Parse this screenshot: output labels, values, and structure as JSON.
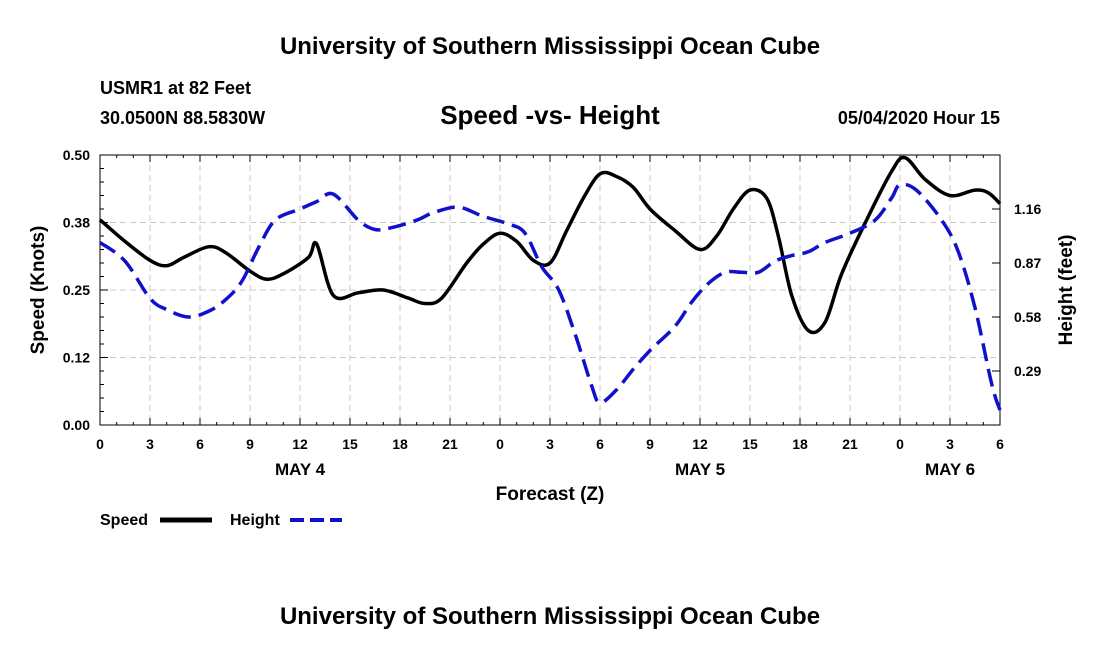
{
  "header": {
    "title_top": "University of Southern Mississippi Ocean Cube",
    "title_bottom": "University of Southern Mississippi Ocean Cube",
    "station": "USMR1 at 82 Feet",
    "coords": "30.0500N 88.5830W",
    "run_time": "05/04/2020 Hour 15"
  },
  "colors": {
    "speed": "#000000",
    "height": "#1111cc",
    "grid": "#c8c8c8"
  },
  "chart_data": {
    "type": "line",
    "title": "Speed -vs- Height",
    "xlabel": "Forecast (Z)",
    "ylabel_left": "Speed (Knots)",
    "ylabel_right": "Height (feet)",
    "x_range_hours": [
      0,
      54
    ],
    "x_ticks": [
      {
        "h": 0,
        "label": "0"
      },
      {
        "h": 3,
        "label": "3"
      },
      {
        "h": 6,
        "label": "6"
      },
      {
        "h": 9,
        "label": "9"
      },
      {
        "h": 12,
        "label": "12"
      },
      {
        "h": 15,
        "label": "15"
      },
      {
        "h": 18,
        "label": "18"
      },
      {
        "h": 21,
        "label": "21"
      },
      {
        "h": 24,
        "label": "0"
      },
      {
        "h": 27,
        "label": "3"
      },
      {
        "h": 30,
        "label": "6"
      },
      {
        "h": 33,
        "label": "9"
      },
      {
        "h": 36,
        "label": "12"
      },
      {
        "h": 39,
        "label": "15"
      },
      {
        "h": 42,
        "label": "18"
      },
      {
        "h": 45,
        "label": "21"
      },
      {
        "h": 48,
        "label": "0"
      },
      {
        "h": 51,
        "label": "3"
      },
      {
        "h": 54,
        "label": "6"
      }
    ],
    "date_labels": [
      {
        "h": 12,
        "label": "MAY 4"
      },
      {
        "h": 36,
        "label": "MAY 5"
      },
      {
        "h": 51,
        "label": "MAY 6"
      }
    ],
    "y_left": {
      "range": [
        0,
        0.5
      ],
      "ticks": [
        "0.00",
        "0.12",
        "0.25",
        "0.38",
        "0.50"
      ]
    },
    "y_right": {
      "range": [
        0,
        1.45
      ],
      "ticks": [
        "0.29",
        "0.58",
        "0.87",
        "1.16"
      ],
      "tick_values": [
        0.29,
        0.58,
        0.87,
        1.16
      ]
    },
    "legend": [
      {
        "name": "Speed",
        "style": "solid"
      },
      {
        "name": "Height",
        "style": "dashed"
      }
    ],
    "series": [
      {
        "name": "Speed",
        "axis": "left",
        "points": [
          [
            0,
            0.38
          ],
          [
            1.5,
            0.34
          ],
          [
            3,
            0.305
          ],
          [
            4,
            0.295
          ],
          [
            5,
            0.31
          ],
          [
            6.5,
            0.33
          ],
          [
            7.5,
            0.32
          ],
          [
            9,
            0.285
          ],
          [
            10,
            0.27
          ],
          [
            11,
            0.28
          ],
          [
            12.5,
            0.31
          ],
          [
            13,
            0.335
          ],
          [
            14,
            0.24
          ],
          [
            15.5,
            0.245
          ],
          [
            17,
            0.25
          ],
          [
            18.5,
            0.235
          ],
          [
            19.5,
            0.225
          ],
          [
            20.5,
            0.235
          ],
          [
            22,
            0.3
          ],
          [
            23,
            0.335
          ],
          [
            24,
            0.355
          ],
          [
            25,
            0.34
          ],
          [
            26,
            0.305
          ],
          [
            27,
            0.3
          ],
          [
            28,
            0.36
          ],
          [
            29,
            0.42
          ],
          [
            30,
            0.465
          ],
          [
            31,
            0.46
          ],
          [
            32,
            0.44
          ],
          [
            33,
            0.4
          ],
          [
            34.5,
            0.36
          ],
          [
            36,
            0.325
          ],
          [
            37,
            0.35
          ],
          [
            38,
            0.4
          ],
          [
            39,
            0.435
          ],
          [
            40,
            0.42
          ],
          [
            40.7,
            0.35
          ],
          [
            41.5,
            0.24
          ],
          [
            42.5,
            0.175
          ],
          [
            43.5,
            0.19
          ],
          [
            44.5,
            0.28
          ],
          [
            46,
            0.38
          ],
          [
            47.5,
            0.47
          ],
          [
            48.3,
            0.495
          ],
          [
            49.5,
            0.455
          ],
          [
            51,
            0.425
          ],
          [
            52.5,
            0.435
          ],
          [
            53.3,
            0.43
          ],
          [
            54,
            0.41
          ]
        ]
      },
      {
        "name": "Height",
        "axis": "right",
        "points": [
          [
            0,
            0.98
          ],
          [
            1.5,
            0.88
          ],
          [
            3,
            0.68
          ],
          [
            4,
            0.62
          ],
          [
            5.3,
            0.58
          ],
          [
            6.5,
            0.61
          ],
          [
            7.5,
            0.67
          ],
          [
            8.5,
            0.77
          ],
          [
            9.5,
            0.95
          ],
          [
            10.5,
            1.1
          ],
          [
            12,
            1.16
          ],
          [
            13,
            1.2
          ],
          [
            14,
            1.24
          ],
          [
            15.5,
            1.1
          ],
          [
            16.5,
            1.05
          ],
          [
            17.5,
            1.06
          ],
          [
            19,
            1.1
          ],
          [
            20,
            1.14
          ],
          [
            21.5,
            1.17
          ],
          [
            23,
            1.12
          ],
          [
            24.5,
            1.08
          ],
          [
            25.5,
            1.03
          ],
          [
            26.5,
            0.85
          ],
          [
            27.5,
            0.73
          ],
          [
            28.5,
            0.49
          ],
          [
            29.5,
            0.21
          ],
          [
            30,
            0.12
          ],
          [
            31,
            0.19
          ],
          [
            32,
            0.3
          ],
          [
            33,
            0.4
          ],
          [
            34.5,
            0.53
          ],
          [
            35.5,
            0.66
          ],
          [
            36.5,
            0.76
          ],
          [
            37.5,
            0.82
          ],
          [
            38.5,
            0.82
          ],
          [
            39.5,
            0.82
          ],
          [
            40.5,
            0.88
          ],
          [
            41.5,
            0.91
          ],
          [
            42.5,
            0.93
          ],
          [
            43.5,
            0.98
          ],
          [
            45,
            1.03
          ],
          [
            46.5,
            1.1
          ],
          [
            47.5,
            1.22
          ],
          [
            48,
            1.29
          ],
          [
            49,
            1.26
          ],
          [
            50.5,
            1.1
          ],
          [
            51.5,
            0.93
          ],
          [
            52.5,
            0.63
          ],
          [
            53.5,
            0.22
          ],
          [
            54,
            0.08
          ]
        ]
      }
    ]
  }
}
